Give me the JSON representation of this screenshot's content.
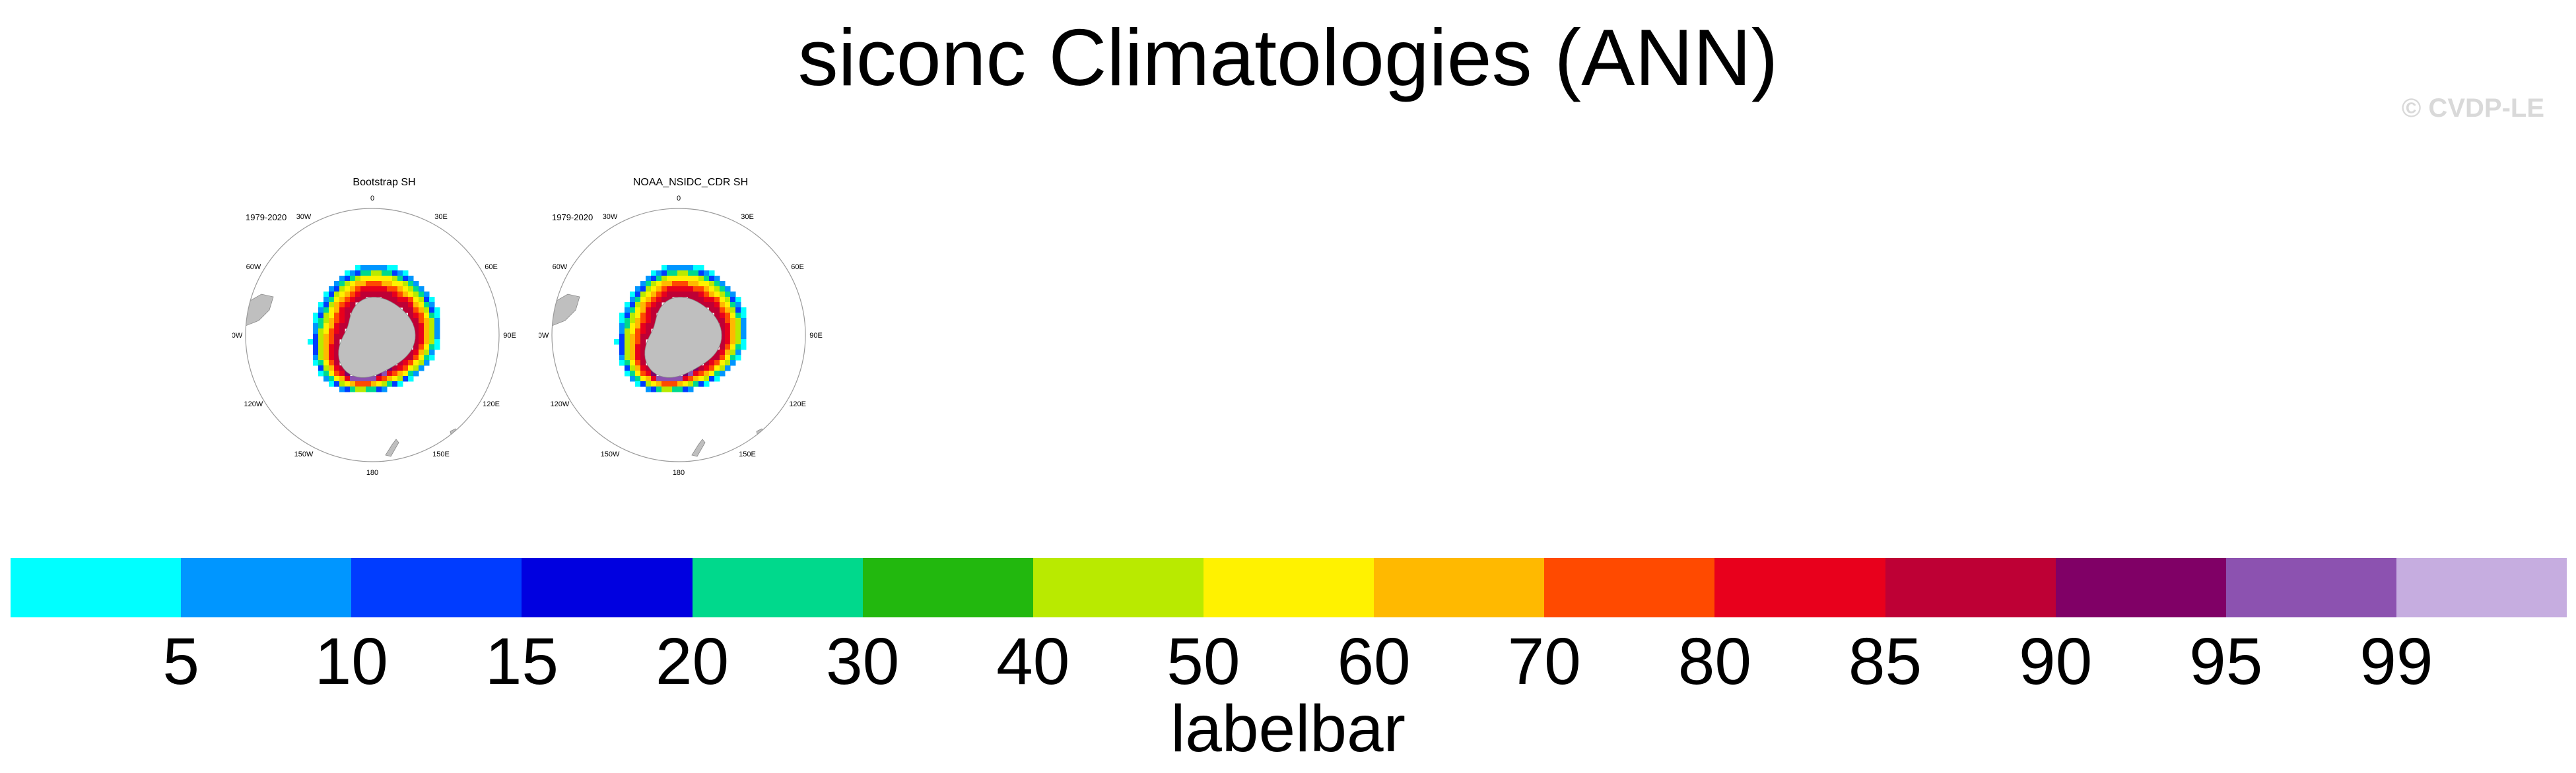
{
  "title": "siconc Climatologies (ANN)",
  "copyright": "© CVDP-LE",
  "panels": [
    {
      "title": "Bootstrap SH",
      "period": "1979-2020",
      "lon_labels": [
        "0",
        "30E",
        "60E",
        "90E",
        "120E",
        "150E",
        "180",
        "150W",
        "120W",
        "90W",
        "60W",
        "30W"
      ]
    },
    {
      "title": "NOAA_NSIDC_CDR SH",
      "period": "1979-2020",
      "lon_labels": [
        "0",
        "30E",
        "60E",
        "90E",
        "120E",
        "150E",
        "180",
        "150W",
        "120W",
        "90W",
        "60W",
        "30W"
      ]
    }
  ],
  "colorbar": {
    "title": "labelbar",
    "levels": [
      "5",
      "10",
      "15",
      "20",
      "30",
      "40",
      "50",
      "60",
      "70",
      "80",
      "85",
      "90",
      "95",
      "99"
    ],
    "colors": [
      "#00ffff",
      "#0096ff",
      "#003cff",
      "#0000e0",
      "#00d98c",
      "#22b80e",
      "#b9ea00",
      "#fff200",
      "#ffb900",
      "#ff4a00",
      "#e8001c",
      "#be0035",
      "#800066",
      "#8c52b0",
      "#c6ade0"
    ]
  }
}
